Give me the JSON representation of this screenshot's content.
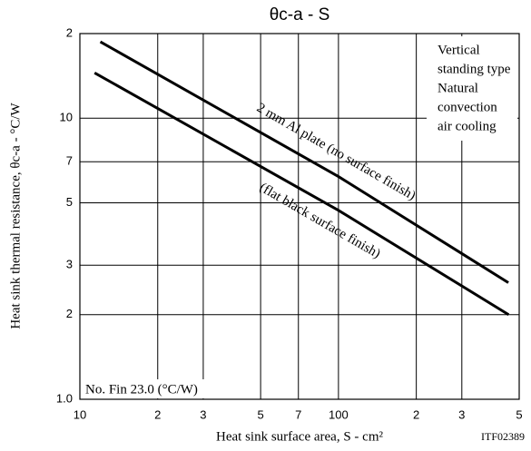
{
  "chart_data": {
    "type": "line",
    "title": "θc-a - S",
    "x_label": "Heat sink surface area, S - cm²",
    "y_label": "Heat sink thermal resistance, θc-a - °C/W",
    "log_x": true,
    "log_y": true,
    "grid": true,
    "xlim": [
      10,
      500
    ],
    "xticks": [
      10,
      {
        "value": 20,
        "label": "2"
      },
      {
        "value": 30,
        "label": "3"
      },
      {
        "value": 50,
        "label": "5"
      },
      {
        "value": 70,
        "label": "7"
      },
      100,
      {
        "value": 200,
        "label": "2"
      },
      {
        "value": 300,
        "label": "3"
      },
      {
        "value": 500,
        "label": "5"
      }
    ],
    "ylim": [
      1,
      20
    ],
    "yticks": [
      {
        "value": 1,
        "label": "1.0"
      },
      2,
      3,
      5,
      7,
      10,
      {
        "value": 20,
        "label": "2"
      }
    ],
    "series": [
      {
        "name": "2 mm Al plate (no surface finish)",
        "color": "#000000",
        "x": [
          12,
          100,
          454
        ],
        "values": [
          18.7,
          6.2,
          2.6
        ]
      },
      {
        "name": "(flat black surface finish)",
        "color": "#000000",
        "x": [
          11.4,
          100,
          455
        ],
        "values": [
          14.5,
          4.7,
          2.0
        ]
      }
    ],
    "note": [
      "Vertical",
      "standing type",
      "Natural",
      "convection",
      "air cooling"
    ],
    "fin_note": "No. Fin 23.0 (°C/W)",
    "code": "ITF02389"
  }
}
